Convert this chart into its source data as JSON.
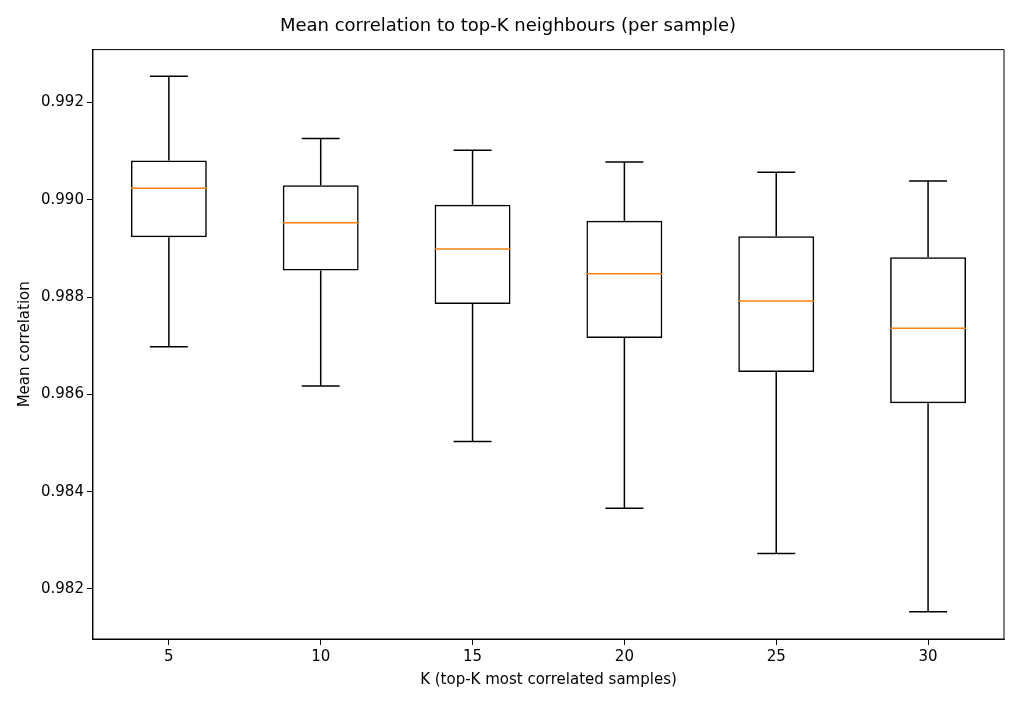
{
  "chart_data": {
    "type": "box",
    "title": "Mean correlation to top-K neighbours (per sample)",
    "xlabel": "K (top-K most correlated samples)",
    "ylabel": "Mean correlation",
    "categories": [
      "5",
      "10",
      "15",
      "20",
      "25",
      "30"
    ],
    "ylim": [
      0.98097,
      0.99309
    ],
    "yticks": [
      0.982,
      0.984,
      0.986,
      0.988,
      {
        "value": 0.99,
        "label": "0.990"
      },
      0.992
    ],
    "grid": false,
    "legend": false,
    "series": [
      {
        "color": "#000000",
        "boxes": [
          {
            "low": 0.98698,
            "q1": 0.98923,
            "median": 0.99024,
            "q3": 0.99081,
            "high": 0.99254
          },
          {
            "low": 0.98617,
            "q1": 0.98855,
            "median": 0.98953,
            "q3": 0.9903,
            "high": 0.99126
          },
          {
            "low": 0.98503,
            "q1": 0.98786,
            "median": 0.98899,
            "q3": 0.9899,
            "high": 0.99102
          },
          {
            "low": 0.98366,
            "q1": 0.98716,
            "median": 0.98848,
            "q3": 0.98957,
            "high": 0.99078
          },
          {
            "low": 0.98273,
            "q1": 0.98646,
            "median": 0.98792,
            "q3": 0.98925,
            "high": 0.99057
          },
          {
            "low": 0.98153,
            "q1": 0.98582,
            "median": 0.98736,
            "q3": 0.98882,
            "high": 0.99039
          }
        ]
      }
    ]
  }
}
